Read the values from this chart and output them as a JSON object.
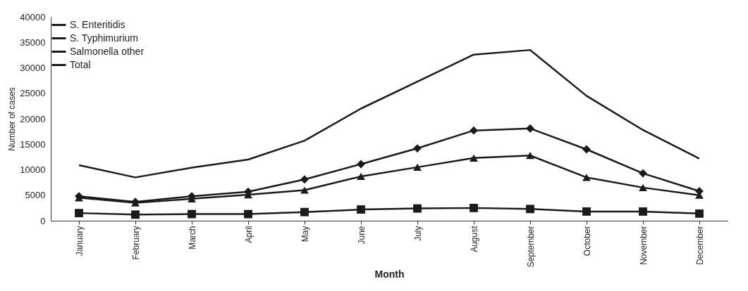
{
  "chart_data": {
    "type": "line",
    "xlabel": "Month",
    "ylabel": "Number of cases",
    "categories": [
      "January",
      "February",
      "March",
      "April",
      "May",
      "June",
      "July",
      "August",
      "September",
      "October",
      "November",
      "December"
    ],
    "series": [
      {
        "name": "S. Enteritidis",
        "color": "#1a1a1a",
        "marker": "diamond",
        "values": [
          4800,
          3700,
          4800,
          5700,
          8100,
          11100,
          14200,
          17700,
          18100,
          14000,
          9300,
          5800
        ]
      },
      {
        "name": "S. Typhimurium",
        "color": "#1a1a1a",
        "marker": "square",
        "values": [
          1500,
          1200,
          1300,
          1300,
          1700,
          2200,
          2400,
          2500,
          2300,
          1800,
          1800,
          1400
        ]
      },
      {
        "name": "Salmonella other",
        "color": "#1a1a1a",
        "marker": "triangle",
        "values": [
          4500,
          3500,
          4300,
          5100,
          6000,
          8700,
          10500,
          12300,
          12800,
          8500,
          6500,
          5000
        ]
      },
      {
        "name": "Total",
        "color": "#1a1a1a",
        "marker": "none",
        "values": [
          10900,
          8500,
          10400,
          12000,
          15700,
          22000,
          27300,
          32600,
          33500,
          24500,
          17800,
          12200
        ]
      }
    ],
    "ylim": [
      0,
      40000
    ],
    "yticks": [
      0,
      5000,
      10000,
      15000,
      20000,
      25000,
      30000,
      35000,
      40000
    ],
    "grid": false,
    "legend": "top left"
  }
}
